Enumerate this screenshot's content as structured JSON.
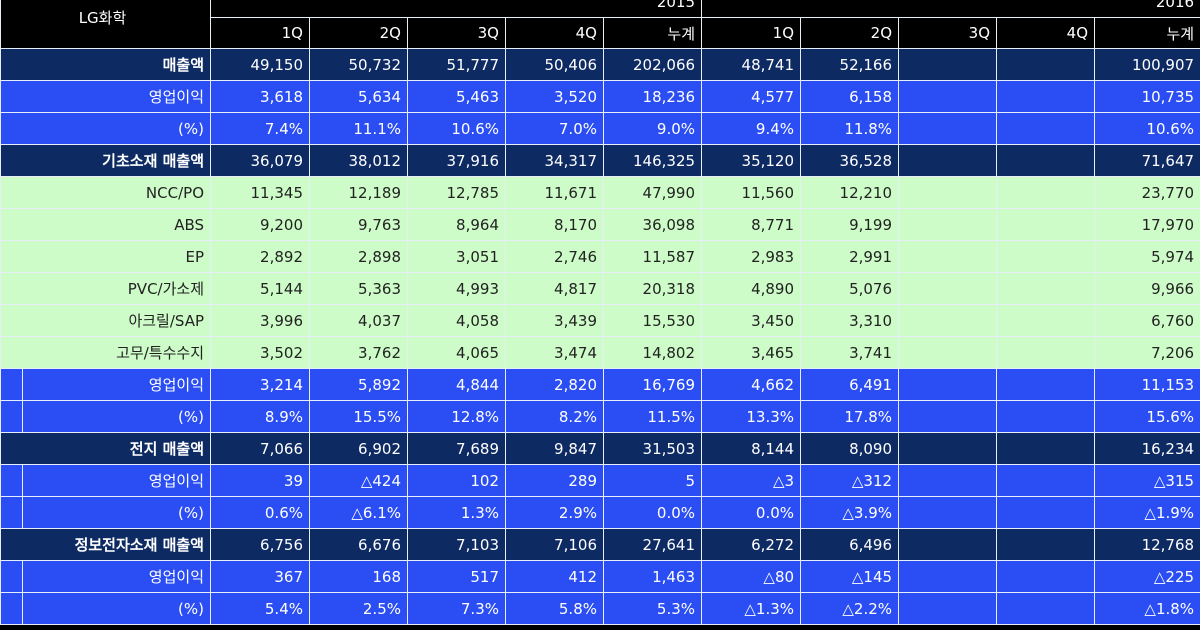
{
  "company": "LG화학",
  "years": [
    "2015",
    "2016"
  ],
  "quarters": [
    "1Q",
    "2Q",
    "3Q",
    "4Q",
    "누계"
  ],
  "rows": [
    {
      "label": "매출액",
      "style": "navy",
      "indent": false,
      "v": [
        "49,150",
        "50,732",
        "51,777",
        "50,406",
        "202,066",
        "48,741",
        "52,166",
        "",
        "",
        "100,907"
      ]
    },
    {
      "label": "영업이익",
      "style": "blue",
      "indent": false,
      "v": [
        "3,618",
        "5,634",
        "5,463",
        "3,520",
        "18,236",
        "4,577",
        "6,158",
        "",
        "",
        "10,735"
      ]
    },
    {
      "label": "(%)",
      "style": "blue",
      "indent": false,
      "v": [
        "7.4%",
        "11.1%",
        "10.6%",
        "7.0%",
        "9.0%",
        "9.4%",
        "11.8%",
        "",
        "",
        "10.6%"
      ]
    },
    {
      "label": "기초소재 매출액",
      "style": "navy",
      "indent": false,
      "v": [
        "36,079",
        "38,012",
        "37,916",
        "34,317",
        "146,325",
        "35,120",
        "36,528",
        "",
        "",
        "71,647"
      ]
    },
    {
      "label": "NCC/PO",
      "style": "green",
      "indent": false,
      "v": [
        "11,345",
        "12,189",
        "12,785",
        "11,671",
        "47,990",
        "11,560",
        "12,210",
        "",
        "",
        "23,770"
      ]
    },
    {
      "label": "ABS",
      "style": "green",
      "indent": false,
      "v": [
        "9,200",
        "9,763",
        "8,964",
        "8,170",
        "36,098",
        "8,771",
        "9,199",
        "",
        "",
        "17,970"
      ]
    },
    {
      "label": "EP",
      "style": "green",
      "indent": false,
      "v": [
        "2,892",
        "2,898",
        "3,051",
        "2,746",
        "11,587",
        "2,983",
        "2,991",
        "",
        "",
        "5,974"
      ]
    },
    {
      "label": "PVC/가소제",
      "style": "green",
      "indent": false,
      "v": [
        "5,144",
        "5,363",
        "4,993",
        "4,817",
        "20,318",
        "4,890",
        "5,076",
        "",
        "",
        "9,966"
      ]
    },
    {
      "label": "아크릴/SAP",
      "style": "green",
      "indent": false,
      "v": [
        "3,996",
        "4,037",
        "4,058",
        "3,439",
        "15,530",
        "3,450",
        "3,310",
        "",
        "",
        "6,760"
      ]
    },
    {
      "label": "고무/특수수지",
      "style": "green",
      "indent": false,
      "v": [
        "3,502",
        "3,762",
        "4,065",
        "3,474",
        "14,802",
        "3,465",
        "3,741",
        "",
        "",
        "7,206"
      ]
    },
    {
      "label": "영업이익",
      "style": "blue",
      "indent": true,
      "v": [
        "3,214",
        "5,892",
        "4,844",
        "2,820",
        "16,769",
        "4,662",
        "6,491",
        "",
        "",
        "11,153"
      ]
    },
    {
      "label": "(%)",
      "style": "blue",
      "indent": true,
      "v": [
        "8.9%",
        "15.5%",
        "12.8%",
        "8.2%",
        "11.5%",
        "13.3%",
        "17.8%",
        "",
        "",
        "15.6%"
      ]
    },
    {
      "label": "전지 매출액",
      "style": "navy",
      "indent": false,
      "v": [
        "7,066",
        "6,902",
        "7,689",
        "9,847",
        "31,503",
        "8,144",
        "8,090",
        "",
        "",
        "16,234"
      ]
    },
    {
      "label": "영업이익",
      "style": "blue",
      "indent": true,
      "v": [
        "39",
        "△424",
        "102",
        "289",
        "5",
        "△3",
        "△312",
        "",
        "",
        "△315"
      ]
    },
    {
      "label": "(%)",
      "style": "blue",
      "indent": true,
      "v": [
        "0.6%",
        "△6.1%",
        "1.3%",
        "2.9%",
        "0.0%",
        "0.0%",
        "△3.9%",
        "",
        "",
        "△1.9%"
      ]
    },
    {
      "label": "정보전자소재 매출액",
      "style": "navy",
      "indent": false,
      "v": [
        "6,756",
        "6,676",
        "7,103",
        "7,106",
        "27,641",
        "6,272",
        "6,496",
        "",
        "",
        "12,768"
      ]
    },
    {
      "label": "영업이익",
      "style": "blue",
      "indent": true,
      "v": [
        "367",
        "168",
        "517",
        "412",
        "1,463",
        "△80",
        "△145",
        "",
        "",
        "△225"
      ]
    },
    {
      "label": "(%)",
      "style": "blue",
      "indent": true,
      "v": [
        "5.4%",
        "2.5%",
        "7.3%",
        "5.8%",
        "5.3%",
        "△1.3%",
        "△2.2%",
        "",
        "",
        "△1.8%"
      ]
    }
  ]
}
